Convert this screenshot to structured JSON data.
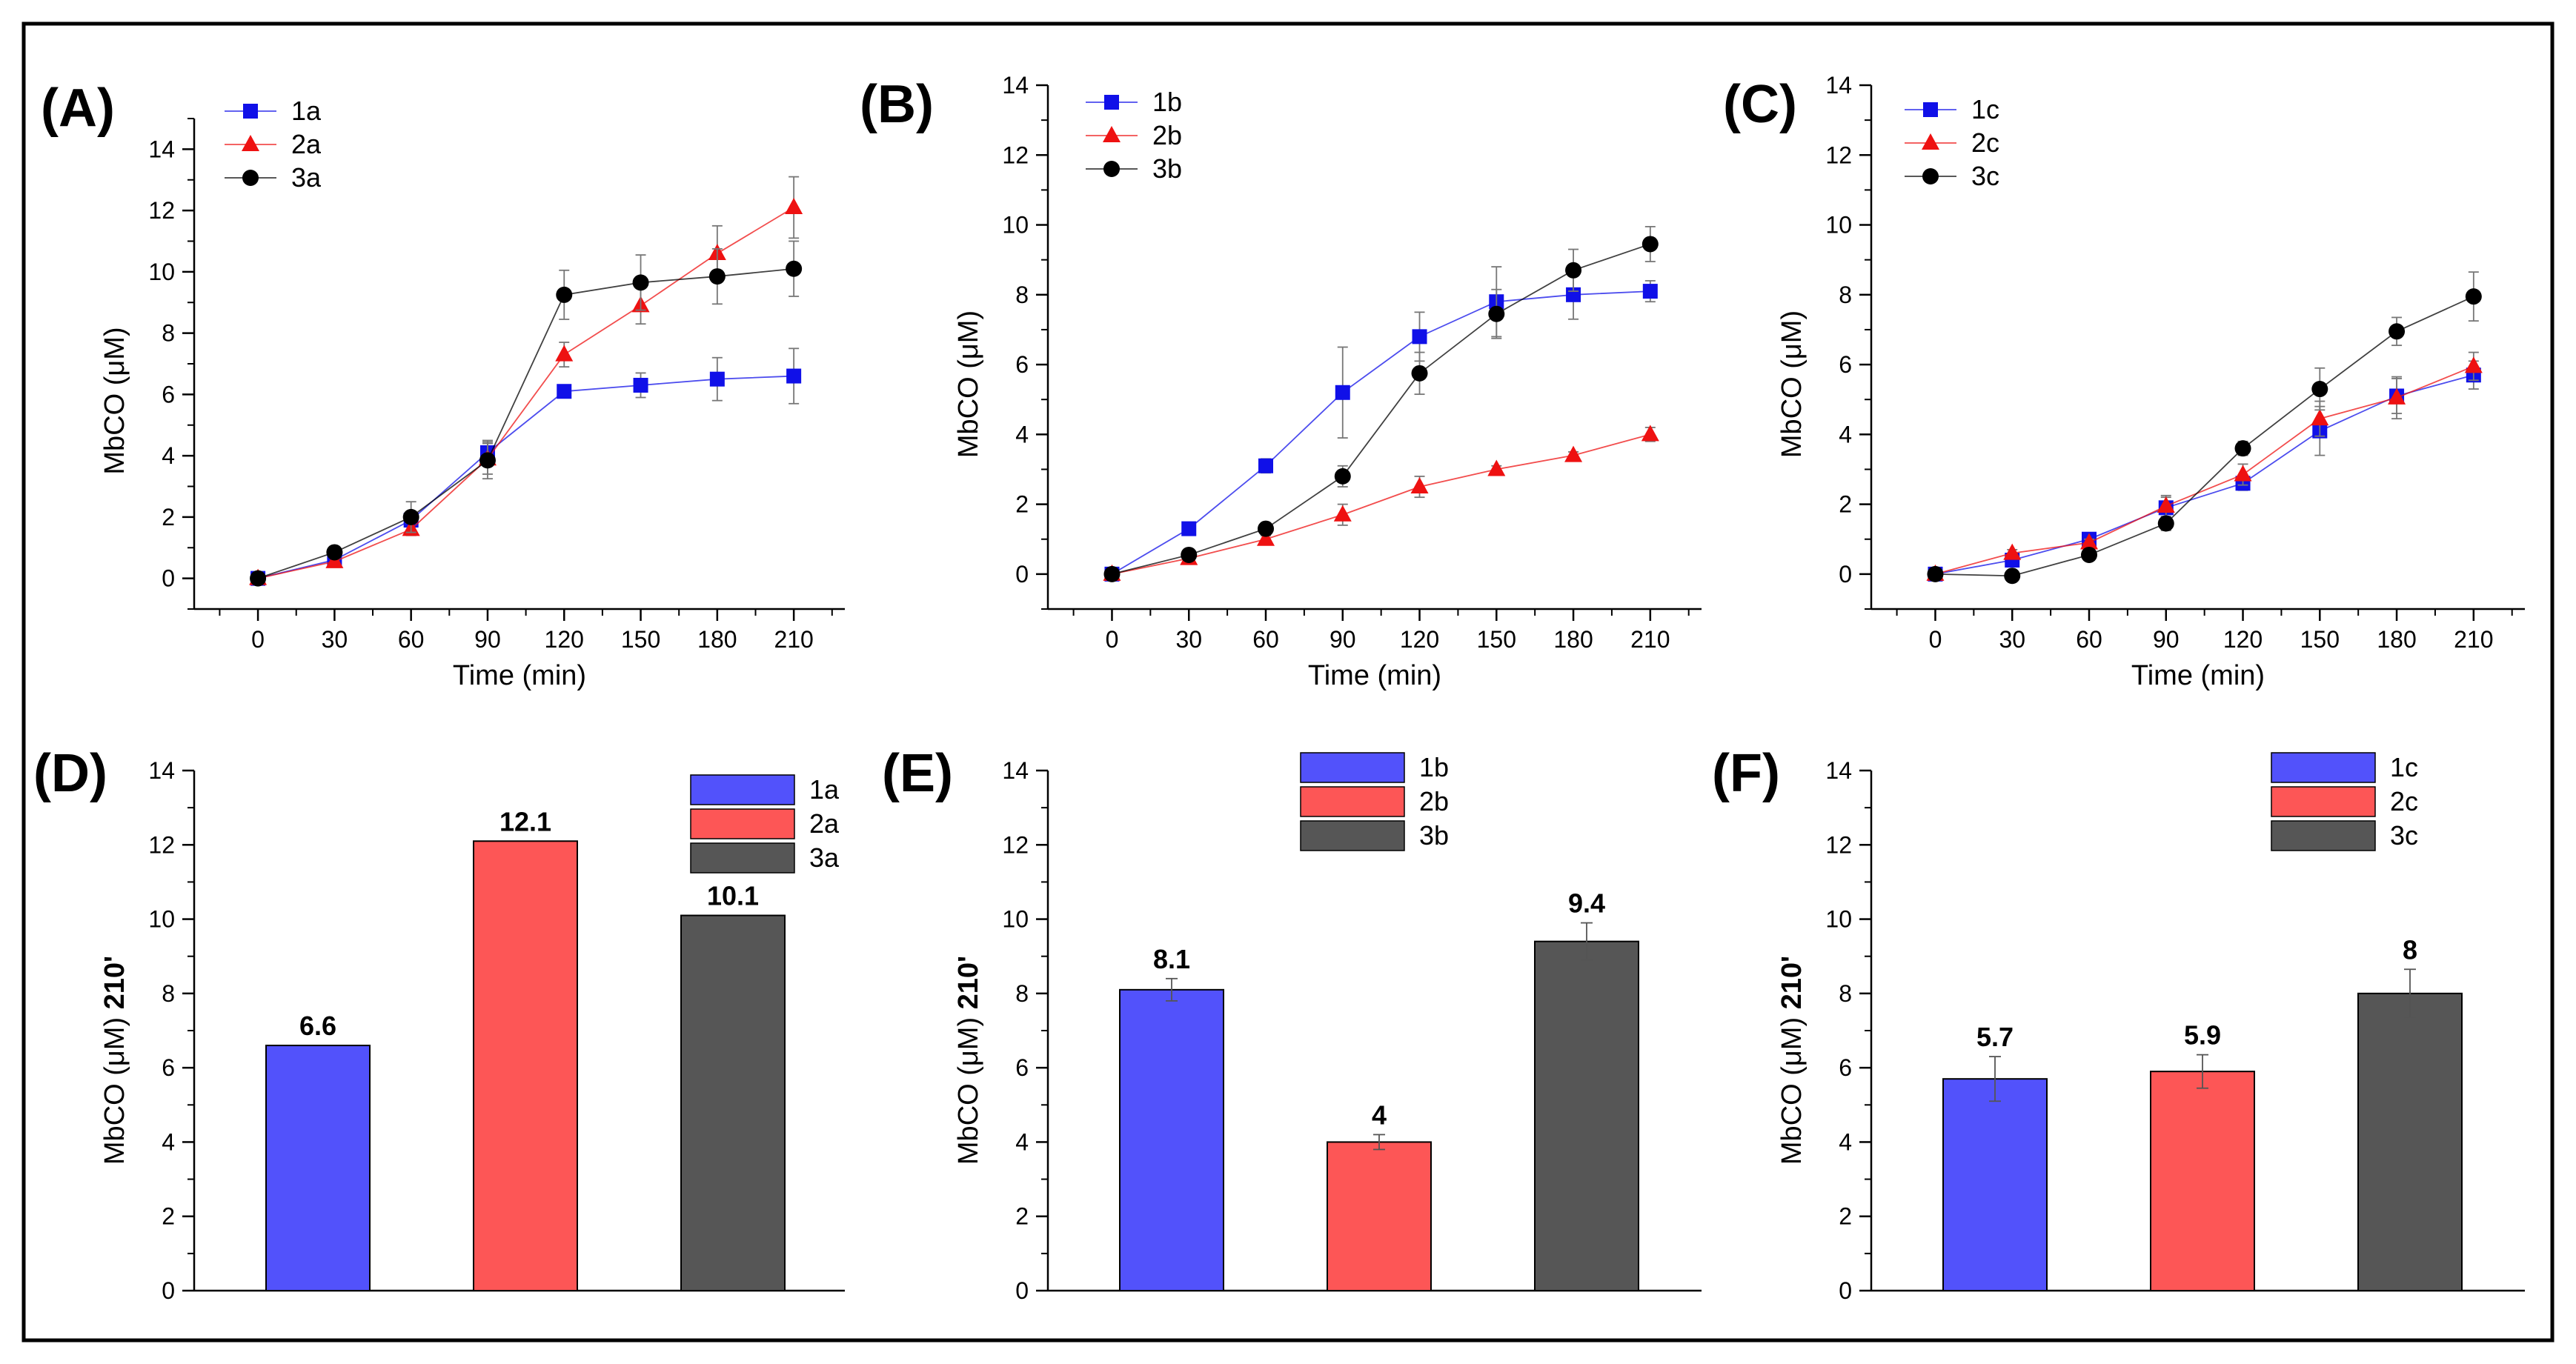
{
  "chart_data": [
    {
      "panel": "(A)",
      "type": "line",
      "xlabel": "Time (min)",
      "ylabel": "MbCO (μM)",
      "x": [
        0,
        30,
        60,
        90,
        120,
        150,
        180,
        210
      ],
      "xticks": [
        0,
        30,
        60,
        90,
        120,
        150,
        180,
        210
      ],
      "xlim": [
        -25,
        230
      ],
      "ylim": [
        -1,
        15
      ],
      "yticks": [
        0,
        2,
        4,
        6,
        8,
        10,
        12,
        14
      ],
      "series": [
        {
          "name": "1a",
          "color": "#1010e8",
          "marker": "square",
          "values": [
            0.0,
            0.6,
            1.9,
            4.1,
            6.1,
            6.3,
            6.5,
            6.6
          ],
          "errors": [
            0.05,
            0.1,
            0.2,
            0.4,
            0.2,
            0.4,
            0.7,
            0.9
          ]
        },
        {
          "name": "2a",
          "color": "#ee1111",
          "marker": "triangle",
          "values": [
            0.0,
            0.55,
            1.6,
            3.9,
            7.3,
            8.9,
            10.6,
            12.1
          ],
          "errors": [
            0.05,
            0.1,
            0.2,
            0.5,
            0.4,
            0.6,
            0.9,
            1.0
          ]
        },
        {
          "name": "3a",
          "color": "#000000",
          "marker": "circle",
          "values": [
            0.0,
            0.85,
            2.0,
            3.85,
            9.25,
            9.65,
            9.85,
            10.1
          ],
          "errors": [
            0.05,
            0.1,
            0.5,
            0.6,
            0.8,
            0.9,
            0.9,
            0.9
          ]
        }
      ]
    },
    {
      "panel": "(B)",
      "type": "line",
      "xlabel": "Time (min)",
      "ylabel": "MbCO (μM)",
      "x": [
        0,
        30,
        60,
        90,
        120,
        150,
        180,
        210
      ],
      "xticks": [
        0,
        30,
        60,
        90,
        120,
        150,
        180,
        210
      ],
      "xlim": [
        -25,
        230
      ],
      "ylim": [
        -1,
        14
      ],
      "yticks": [
        0,
        2,
        4,
        6,
        8,
        10,
        12,
        14
      ],
      "series": [
        {
          "name": "1b",
          "color": "#1010e8",
          "marker": "square",
          "values": [
            0.0,
            1.3,
            3.1,
            5.2,
            6.8,
            7.8,
            8.0,
            8.1
          ],
          "errors": [
            0.05,
            0.1,
            0.2,
            1.3,
            0.7,
            1.0,
            0.7,
            0.3
          ]
        },
        {
          "name": "2b",
          "color": "#ee1111",
          "marker": "triangle",
          "values": [
            0.0,
            0.45,
            1.0,
            1.7,
            2.5,
            3.0,
            3.4,
            4.0
          ],
          "errors": [
            0.05,
            0.1,
            0.1,
            0.3,
            0.3,
            0.1,
            0.1,
            0.2
          ]
        },
        {
          "name": "3b",
          "color": "#000000",
          "marker": "circle",
          "values": [
            0.0,
            0.55,
            1.3,
            2.8,
            5.75,
            7.45,
            8.7,
            9.45
          ],
          "errors": [
            0.05,
            0.1,
            0.1,
            0.3,
            0.6,
            0.7,
            0.6,
            0.5
          ]
        }
      ]
    },
    {
      "panel": "(C)",
      "type": "line",
      "xlabel": "Time (min)",
      "ylabel": "MbCO (μM)",
      "x": [
        0,
        30,
        60,
        90,
        120,
        150,
        180,
        210
      ],
      "xticks": [
        0,
        30,
        60,
        90,
        120,
        150,
        180,
        210
      ],
      "xlim": [
        -25,
        230
      ],
      "ylim": [
        -1,
        14
      ],
      "yticks": [
        0,
        2,
        4,
        6,
        8,
        10,
        12,
        14
      ],
      "series": [
        {
          "name": "1c",
          "color": "#1010e8",
          "marker": "square",
          "values": [
            0.0,
            0.4,
            1.0,
            1.9,
            2.6,
            4.1,
            5.1,
            5.7
          ],
          "errors": [
            0.05,
            0.1,
            0.1,
            0.3,
            0.2,
            0.7,
            0.5,
            0.4
          ]
        },
        {
          "name": "2c",
          "color": "#ee1111",
          "marker": "triangle",
          "values": [
            0.0,
            0.6,
            0.9,
            1.95,
            2.85,
            4.45,
            5.05,
            5.95
          ],
          "errors": [
            0.05,
            0.1,
            0.1,
            0.3,
            0.3,
            0.5,
            0.6,
            0.4
          ]
        },
        {
          "name": "3c",
          "color": "#000000",
          "marker": "circle",
          "values": [
            0.0,
            -0.05,
            0.55,
            1.45,
            3.6,
            5.3,
            6.95,
            7.95
          ],
          "errors": [
            0.05,
            0.05,
            0.1,
            0.2,
            0.2,
            0.6,
            0.4,
            0.7
          ]
        }
      ]
    },
    {
      "panel": "(D)",
      "type": "bar",
      "ylabel_main": "MbCO (μM)",
      "ylabel_suffix": "210'",
      "ylim": [
        0,
        14
      ],
      "yticks": [
        0,
        2,
        4,
        6,
        8,
        10,
        12,
        14
      ],
      "categories": [
        "1a",
        "2a",
        "3a"
      ],
      "values": [
        6.6,
        12.1,
        10.1
      ],
      "value_labels": [
        "6.6",
        "12.1",
        "10.1"
      ],
      "errors": [
        0,
        0,
        0
      ],
      "colors": [
        "#5252fb",
        "#fd5656",
        "#565656"
      ]
    },
    {
      "panel": "(E)",
      "type": "bar",
      "ylabel_main": "MbCO (μM)",
      "ylabel_suffix": "210'",
      "ylim": [
        0,
        14
      ],
      "yticks": [
        0,
        2,
        4,
        6,
        8,
        10,
        12,
        14
      ],
      "categories": [
        "1b",
        "2b",
        "3b"
      ],
      "values": [
        8.1,
        4.0,
        9.4
      ],
      "value_labels": [
        "8.1",
        "4",
        "9.4"
      ],
      "errors": [
        0.3,
        0.2,
        0.5
      ],
      "colors": [
        "#5252fb",
        "#fd5656",
        "#565656"
      ]
    },
    {
      "panel": "(F)",
      "type": "bar",
      "ylabel_main": "MbCO (μM)",
      "ylabel_suffix": "210'",
      "ylim": [
        0,
        14
      ],
      "yticks": [
        0,
        2,
        4,
        6,
        8,
        10,
        12,
        14
      ],
      "categories": [
        "1c",
        "2c",
        "3c"
      ],
      "values": [
        5.7,
        5.9,
        8.0
      ],
      "value_labels": [
        "5.7",
        "5.9",
        "8"
      ],
      "errors": [
        0.6,
        0.45,
        0.65
      ],
      "colors": [
        "#5252fb",
        "#fd5656",
        "#565656"
      ]
    }
  ]
}
